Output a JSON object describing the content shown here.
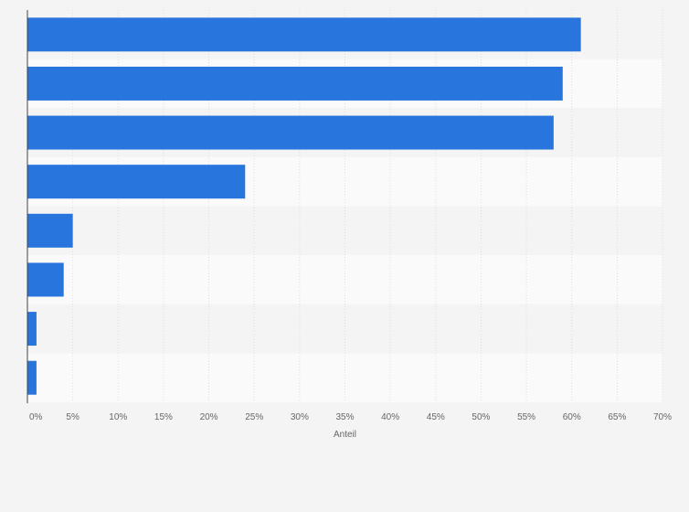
{
  "chart_data": {
    "type": "bar",
    "orientation": "horizontal",
    "categories": [
      "",
      "",
      "",
      "",
      "",
      "",
      "",
      ""
    ],
    "values": [
      61,
      59,
      58,
      24,
      5,
      4,
      1,
      1
    ],
    "xlabel": "Anteil",
    "ylabel": "",
    "xlim": [
      0,
      70
    ],
    "xticks": [
      "0%",
      "5%",
      "10%",
      "15%",
      "20%",
      "25%",
      "30%",
      "35%",
      "40%",
      "45%",
      "50%",
      "55%",
      "60%",
      "65%",
      "70%"
    ],
    "grid": true,
    "bar_color": "#2876dd"
  }
}
